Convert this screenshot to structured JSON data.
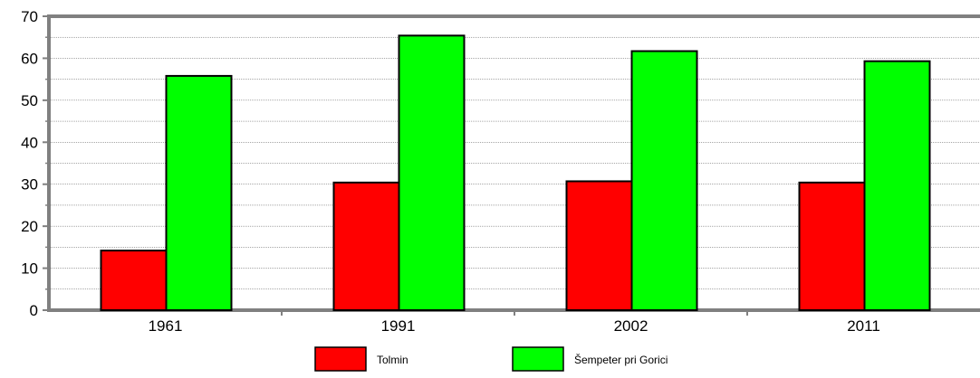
{
  "chart_data": {
    "type": "bar",
    "title": "",
    "xlabel": "",
    "ylabel": "",
    "categories": [
      "1961",
      "1991",
      "2002",
      "2011"
    ],
    "series": [
      {
        "name": "Tolmin",
        "color": "#ff0000",
        "values": [
          14.2,
          30.4,
          30.7,
          30.4
        ]
      },
      {
        "name": "Šempeter pri Gorici",
        "color": "#00ff00",
        "values": [
          55.8,
          65.4,
          61.7,
          59.3
        ]
      }
    ],
    "ylim": [
      0,
      70
    ],
    "yticks": [
      0,
      10,
      20,
      30,
      40,
      50,
      60,
      70
    ],
    "grid": true,
    "legend_position": "bottom"
  }
}
